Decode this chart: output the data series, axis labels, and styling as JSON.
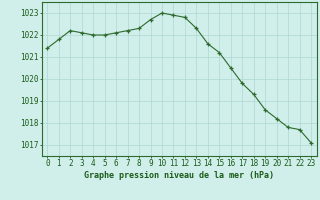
{
  "x": [
    0,
    1,
    2,
    3,
    4,
    5,
    6,
    7,
    8,
    9,
    10,
    11,
    12,
    13,
    14,
    15,
    16,
    17,
    18,
    19,
    20,
    21,
    22,
    23
  ],
  "y": [
    1021.4,
    1021.8,
    1022.2,
    1022.1,
    1022.0,
    1022.0,
    1022.1,
    1022.2,
    1022.3,
    1022.7,
    1023.0,
    1022.9,
    1022.8,
    1022.3,
    1021.6,
    1021.2,
    1020.5,
    1019.8,
    1019.3,
    1018.6,
    1018.2,
    1017.8,
    1017.7,
    1017.1
  ],
  "line_color": "#2d6a2d",
  "marker_color": "#2d6a2d",
  "bg_color": "#d0eeea",
  "grid_color": "#aed8d2",
  "title": "Graphe pression niveau de la mer (hPa)",
  "ylim": [
    1016.5,
    1023.5
  ],
  "yticks": [
    1017,
    1018,
    1019,
    1020,
    1021,
    1022,
    1023
  ],
  "xticks": [
    0,
    1,
    2,
    3,
    4,
    5,
    6,
    7,
    8,
    9,
    10,
    11,
    12,
    13,
    14,
    15,
    16,
    17,
    18,
    19,
    20,
    21,
    22,
    23
  ],
  "xtick_labels": [
    "0",
    "1",
    "2",
    "3",
    "4",
    "5",
    "6",
    "7",
    "8",
    "9",
    "10",
    "11",
    "12",
    "13",
    "14",
    "15",
    "16",
    "17",
    "18",
    "19",
    "20",
    "21",
    "22",
    "23"
  ],
  "title_color": "#1a5c1a",
  "tick_color": "#1a5c1a",
  "border_color": "#2d6a2d",
  "title_fontsize": 6.0,
  "tick_fontsize": 5.5
}
